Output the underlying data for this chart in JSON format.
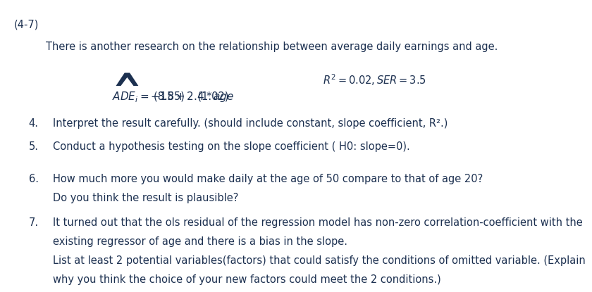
{
  "bg_color": "#ffffff",
  "text_color": "#1c3050",
  "fig_width": 7.65,
  "fig_height": 3.96,
  "header": "(4-7)",
  "intro": "There is another research on the relationship between average daily earnings and age.",
  "eq_lhs": "$\\widehat{ADE}_i = -15  +  2.4 * age$",
  "eq_rhs": "$R^2= 0.02, SER =3.5$",
  "eq_se": "(8.85)    (1.02)",
  "items": [
    {
      "num": "4.",
      "line1": "Interpret the result carefully. (should include constant, slope coefficient, R².)"
    },
    {
      "num": "5.",
      "line1": "Conduct a hypothesis testing on the slope coefficient ( H0: slope=0)."
    },
    {
      "num": "6.",
      "line1": "How much more you would make daily at the age of 50 compare to that of age 20?",
      "line2": "Do you think the result is plausible?"
    },
    {
      "num": "7.",
      "line1": "It turned out that the ols residual of the regression model has non-zero correlation-coefficient with the",
      "line2": "existing regressor of age and there is a bias in the slope.",
      "line3": "List at least 2 potential variables(factors) that could satisfy the conditions of omitted variable. (Explain",
      "line4": "why you think the choice of your new factors could meet the 2 conditions.)"
    }
  ],
  "fs": 10.5,
  "lh": 0.068,
  "indent_num": 0.04,
  "indent_text": 0.085
}
